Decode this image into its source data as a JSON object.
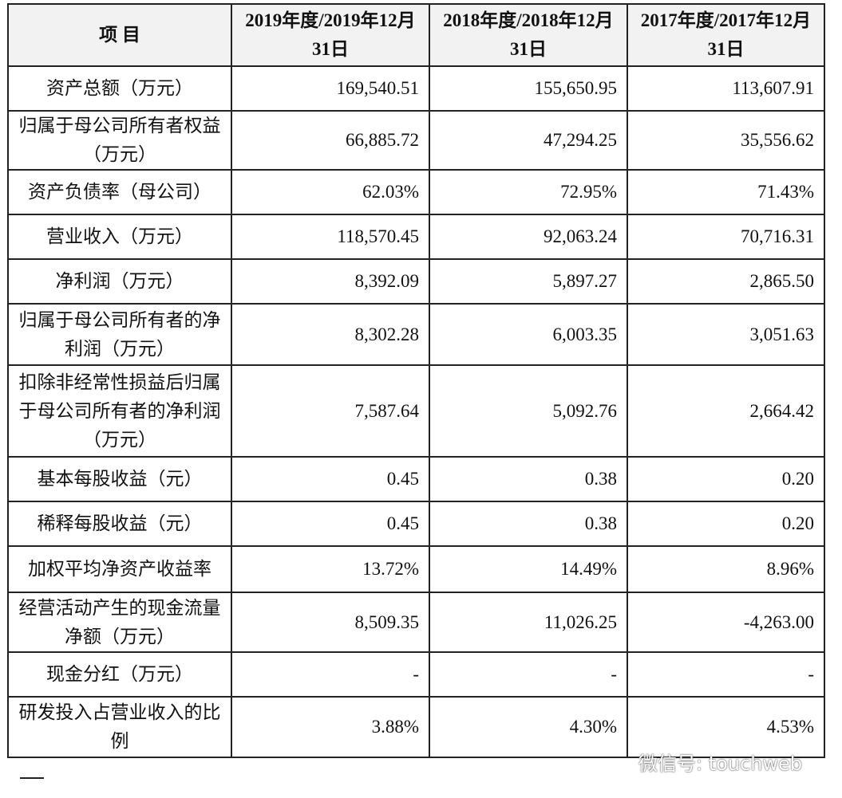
{
  "table": {
    "header": [
      "项 目",
      "2019年度/2019年12月31日",
      "2018年度/2018年12月31日",
      "2017年度/2017年12月31日"
    ],
    "rows": [
      [
        "资产总额（万元）",
        "169,540.51",
        "155,650.95",
        "113,607.91"
      ],
      [
        "归属于母公司所有者权益（万元）",
        "66,885.72",
        "47,294.25",
        "35,556.62"
      ],
      [
        "资产负债率（母公司）",
        "62.03%",
        "72.95%",
        "71.43%"
      ],
      [
        "营业收入（万元）",
        "118,570.45",
        "92,063.24",
        "70,716.31"
      ],
      [
        "净利润（万元）",
        "8,392.09",
        "5,897.27",
        "2,865.50"
      ],
      [
        "归属于母公司所有者的净利润（万元）",
        "8,302.28",
        "6,003.35",
        "3,051.63"
      ],
      [
        "扣除非经常性损益后归属于母公司所有者的净利润（万元）",
        "7,587.64",
        "5,092.76",
        "2,664.42"
      ],
      [
        "基本每股收益（元）",
        "0.45",
        "0.38",
        "0.20"
      ],
      [
        "稀释每股收益（元）",
        "0.45",
        "0.38",
        "0.20"
      ],
      [
        "加权平均净资产收益率",
        "13.72%",
        "14.49%",
        "8.96%"
      ],
      [
        "经营活动产生的现金流量净额（万元）",
        "8,509.35",
        "11,026.25",
        "-4,263.00"
      ],
      [
        "现金分红（万元）",
        "-",
        "-",
        "-"
      ],
      [
        "研发投入占营业收入的比例",
        "3.88%",
        "4.30%",
        "4.53%"
      ]
    ]
  },
  "watermark": "微信号: touchweb"
}
